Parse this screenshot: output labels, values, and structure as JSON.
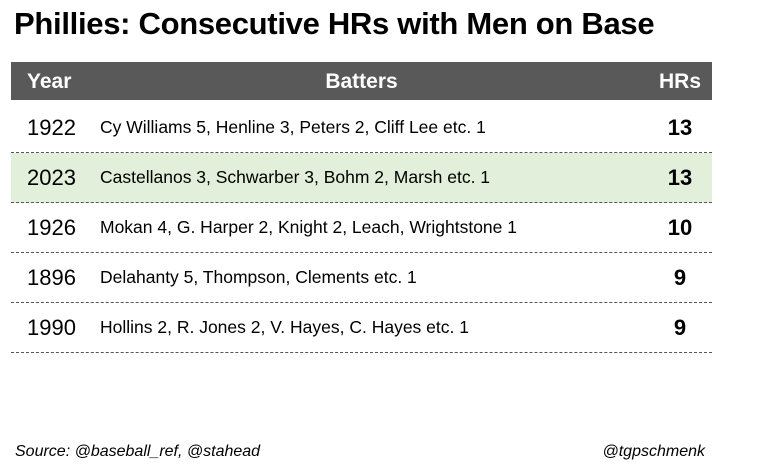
{
  "title": "Phillies: Consecutive HRs with Men on Base",
  "table": {
    "header": [
      "Year",
      "Batters",
      "HRs"
    ],
    "rows": [
      [
        1922,
        "Cy Williams 5, Henline 3, Peters 2, Cliff Lee etc. 1",
        13
      ],
      [
        2023,
        "Castellanos 3, Schwarber 3, Bohm 2, Marsh etc. 1",
        13
      ],
      [
        1926,
        "Mokan 4, G. Harper 2, Knight 2, Leach, Wrightstone 1",
        10
      ],
      [
        1896,
        "Delahanty 5, Thompson, Clements etc. 1",
        9
      ],
      [
        1990,
        "Hollins 2, R. Jones 2, V. Hayes, C. Hayes etc. 1",
        9
      ]
    ],
    "highlight_row": 1
  },
  "footer": {
    "source": "Source: @baseball_ref, @stahead",
    "handle": "@tgpschmenk"
  }
}
